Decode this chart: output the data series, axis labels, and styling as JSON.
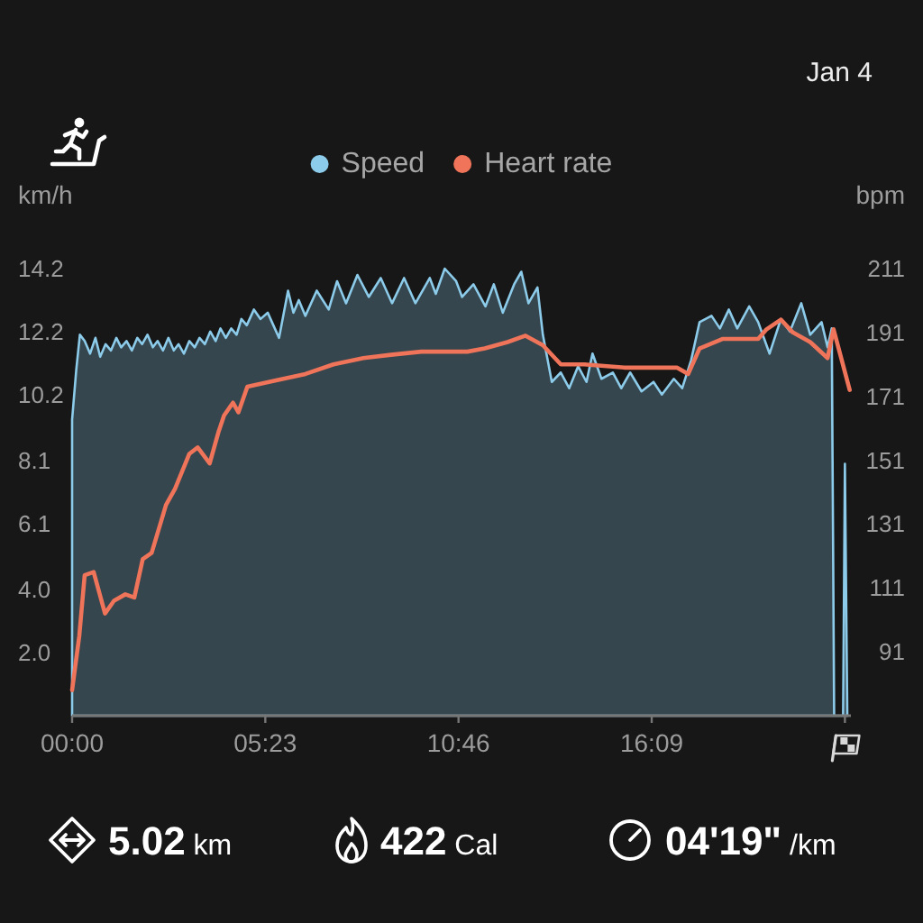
{
  "chart_data": {
    "type": "area",
    "subtitle": "Jan 4",
    "ylabel": "km/h",
    "y2label": "bpm",
    "annotations": [
      "5.02 km",
      "422 Cal",
      "04'19\" /km"
    ],
    "xlim": [
      0,
      1302
    ],
    "xticks": [
      {
        "value": 0,
        "label": "00:00"
      },
      {
        "value": 323,
        "label": "05:23"
      },
      {
        "value": 646,
        "label": "10:46"
      },
      {
        "value": 969,
        "label": "16:09"
      },
      {
        "value": 1292,
        "label": null
      }
    ],
    "ylim": [
      0,
      14.2
    ],
    "yticks": [
      {
        "value": 2.0,
        "label": "2.0"
      },
      {
        "value": 4.0,
        "label": "4.0"
      },
      6.1,
      8.1,
      10.2,
      12.2,
      14.2
    ],
    "y2lim": [
      71,
      211
    ],
    "y2ticks": [
      91,
      111,
      131,
      151,
      171,
      191,
      211
    ],
    "legend": "top",
    "series": [
      {
        "name": "Speed",
        "color": "#8ccbea",
        "x": [
          0,
          7,
          13,
          21,
          30,
          39,
          47,
          56,
          65,
          74,
          82,
          91,
          100,
          109,
          117,
          126,
          135,
          143,
          152,
          161,
          170,
          178,
          187,
          196,
          205,
          213,
          222,
          231,
          240,
          248,
          257,
          266,
          275,
          283,
          292,
          304,
          315,
          327,
          346,
          361,
          370,
          379,
          390,
          409,
          429,
          443,
          458,
          477,
          496,
          516,
          535,
          555,
          574,
          598,
          608,
          623,
          642,
          652,
          671,
          691,
          705,
          720,
          739,
          751,
          763,
          778,
          787,
          802,
          817,
          831,
          846,
          860,
          870,
          885,
          904,
          918,
          933,
          952,
          972,
          986,
          1006,
          1020,
          1035,
          1049,
          1069,
          1083,
          1098,
          1112,
          1132,
          1147,
          1166,
          1185,
          1200,
          1219,
          1234,
          1253,
          1263,
          1270,
          1274,
          1289,
          1292,
          1296
        ],
        "values": [
          9.4,
          11.0,
          12.1,
          11.9,
          11.5,
          12.0,
          11.4,
          11.8,
          11.6,
          12.0,
          11.7,
          11.9,
          11.6,
          12.0,
          11.8,
          12.1,
          11.7,
          11.9,
          11.6,
          12.0,
          11.6,
          11.8,
          11.5,
          11.9,
          11.7,
          12.0,
          11.8,
          12.2,
          11.9,
          12.3,
          12.0,
          12.3,
          12.1,
          12.6,
          12.4,
          12.9,
          12.6,
          12.8,
          12.0,
          13.5,
          12.8,
          13.2,
          12.7,
          13.5,
          12.9,
          13.8,
          13.1,
          14.0,
          13.3,
          13.9,
          13.1,
          13.9,
          13.1,
          13.9,
          13.4,
          14.2,
          13.8,
          13.3,
          13.7,
          13.0,
          13.7,
          12.8,
          13.7,
          14.1,
          13.1,
          13.6,
          12.1,
          10.6,
          10.9,
          10.4,
          11.1,
          10.6,
          11.5,
          10.7,
          10.9,
          10.4,
          10.9,
          10.3,
          10.6,
          10.2,
          10.7,
          10.4,
          11.3,
          12.5,
          12.7,
          12.3,
          12.9,
          12.3,
          13.0,
          12.5,
          11.5,
          12.6,
          12.2,
          13.1,
          12.1,
          12.5,
          11.7,
          12.3,
          0,
          0,
          8.0,
          0
        ]
      },
      {
        "name": "Heart rate",
        "type": "line",
        "axis": "y2",
        "color": "#ef7459",
        "x": [
          0,
          12,
          21,
          36,
          55,
          70,
          89,
          104,
          118,
          133,
          157,
          172,
          196,
          210,
          230,
          245,
          254,
          269,
          278,
          293,
          341,
          390,
          437,
          487,
          533,
          584,
          661,
          690,
          728,
          758,
          787,
          817,
          856,
          923,
          1011,
          1030,
          1049,
          1088,
          1147,
          1161,
          1185,
          1205,
          1234,
          1263,
          1273,
          1300
        ],
        "values": [
          79,
          96,
          115,
          116,
          103,
          107,
          109,
          108,
          120,
          122,
          137,
          142,
          153,
          155,
          150,
          160,
          165,
          169,
          166,
          174,
          176,
          178,
          181,
          183,
          184,
          185,
          185,
          186,
          188,
          190,
          187,
          181,
          181,
          180,
          180,
          178,
          186,
          189,
          189,
          192,
          195,
          191,
          188,
          183,
          192,
          173
        ]
      }
    ]
  }
}
